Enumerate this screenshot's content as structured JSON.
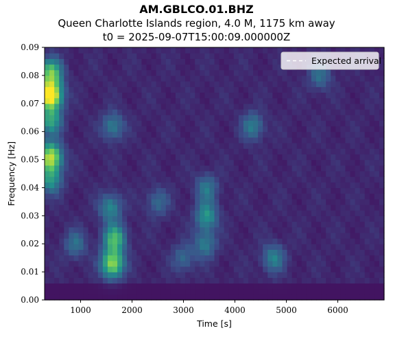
{
  "chart_data": {
    "type": "heatmap",
    "title": "AM.GBLCO.01.BHZ",
    "subtitle": "Queen Charlotte Islands region, 4.0 M, 1175 km away",
    "subtitle2": "t0 = 2025-09-07T15:00:09.000000Z",
    "xlabel": "Time [s]",
    "ylabel": "Frequency [Hz]",
    "xlim": [
      300,
      6900
    ],
    "ylim": [
      0,
      0.09
    ],
    "xticks": [
      1000,
      2000,
      3000,
      4000,
      5000,
      6000
    ],
    "yticks": [
      0.0,
      0.01,
      0.02,
      0.03,
      0.04,
      0.05,
      0.06,
      0.07,
      0.08,
      0.09
    ],
    "colormap": "viridis",
    "grid": false,
    "legend": {
      "placement": "top-right",
      "entries": [
        "Expected arrival"
      ]
    },
    "hotspots": [
      {
        "t": 420,
        "f": 0.073,
        "intensity": 1.0
      },
      {
        "t": 420,
        "f": 0.051,
        "intensity": 0.8
      },
      {
        "t": 420,
        "f": 0.081,
        "intensity": 0.62
      },
      {
        "t": 420,
        "f": 0.064,
        "intensity": 0.45
      },
      {
        "t": 420,
        "f": 0.043,
        "intensity": 0.4
      },
      {
        "t": 1620,
        "f": 0.013,
        "intensity": 0.72
      },
      {
        "t": 1660,
        "f": 0.022,
        "intensity": 0.55
      },
      {
        "t": 1580,
        "f": 0.033,
        "intensity": 0.35
      },
      {
        "t": 1630,
        "f": 0.062,
        "intensity": 0.3
      },
      {
        "t": 3450,
        "f": 0.03,
        "intensity": 0.4
      },
      {
        "t": 3420,
        "f": 0.02,
        "intensity": 0.3
      },
      {
        "t": 3450,
        "f": 0.04,
        "intensity": 0.28
      },
      {
        "t": 4350,
        "f": 0.062,
        "intensity": 0.3
      },
      {
        "t": 4750,
        "f": 0.015,
        "intensity": 0.32
      },
      {
        "t": 5650,
        "f": 0.08,
        "intensity": 0.25
      },
      {
        "t": 900,
        "f": 0.02,
        "intensity": 0.25
      },
      {
        "t": 2500,
        "f": 0.035,
        "intensity": 0.22
      },
      {
        "t": 3000,
        "f": 0.015,
        "intensity": 0.22
      }
    ]
  }
}
